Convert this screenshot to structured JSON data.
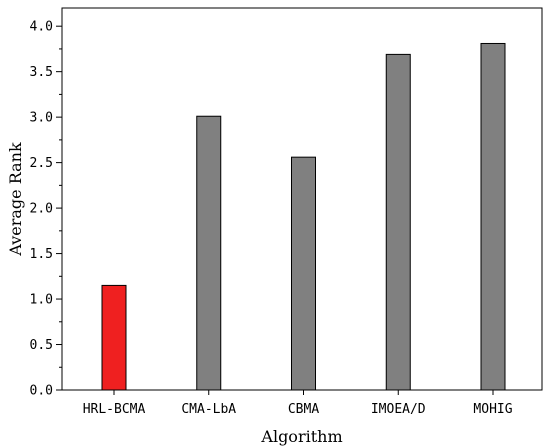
{
  "chart_data": {
    "type": "bar",
    "title": "",
    "xlabel": "Algorithm",
    "ylabel": "Average Rank",
    "categories": [
      "HRL-BCMA",
      "CMA-LbA",
      "CBMA",
      "IMOEA/D",
      "MOHIG"
    ],
    "values": [
      1.15,
      3.01,
      2.56,
      3.69,
      3.81
    ],
    "bar_colors": [
      "#ef2020",
      "#808080",
      "#808080",
      "#808080",
      "#808080"
    ],
    "ylim": [
      0,
      4.2
    ],
    "yticks": [
      "0.0",
      "0.5",
      "1.0",
      "1.5",
      "2.0",
      "2.5",
      "3.0",
      "3.5",
      "4.0"
    ],
    "grid": false,
    "legend": "none"
  }
}
